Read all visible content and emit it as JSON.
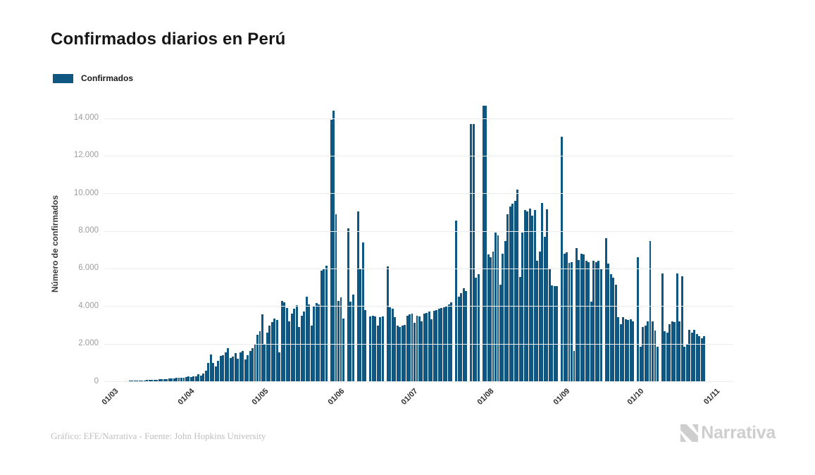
{
  "title": "Confirmados diarios en Perú",
  "legend": {
    "label": "Confirmados",
    "color": "#0f5680"
  },
  "footer": "Gráfico: EFE/Narrativa - Fuente: John Hopkins University",
  "logo": {
    "text": "Narrativa",
    "color": "#cecece"
  },
  "chart_data": {
    "type": "bar",
    "title": "Confirmados diarios en Perú",
    "series_name": "Confirmados",
    "bar_color": "#0f5680",
    "ylabel": "Número de confirmados",
    "ylim": [
      0,
      14650
    ],
    "grid": "horizontal",
    "legend_position": "top-left",
    "y_tick_labels": [
      "0",
      "2.000",
      "4.000",
      "6.000",
      "8.000",
      "10.000",
      "12.000",
      "14.000"
    ],
    "y_tick_values": [
      0,
      2000,
      4000,
      6000,
      8000,
      10000,
      12000,
      14000
    ],
    "x_tick_labels": [
      "01/03",
      "01/04",
      "01/05",
      "01/06",
      "01/07",
      "01/08",
      "01/09",
      "01/10",
      "01/11"
    ],
    "x_tick_day_index": [
      0,
      31,
      61,
      92,
      122,
      153,
      184,
      214,
      245
    ],
    "x_range_note": "daily bars from 01/03 to 01/11",
    "values": [
      2,
      1,
      3,
      4,
      6,
      5,
      9,
      11,
      15,
      17,
      20,
      25,
      28,
      30,
      38,
      43,
      50,
      58,
      65,
      73,
      80,
      88,
      95,
      105,
      115,
      128,
      140,
      148,
      160,
      170,
      180,
      200,
      190,
      210,
      260,
      230,
      250,
      280,
      360,
      310,
      420,
      575,
      960,
      1420,
      980,
      780,
      1100,
      1360,
      1400,
      1550,
      1750,
      1250,
      1300,
      1500,
      1200,
      1550,
      1600,
      1150,
      1400,
      1600,
      1750,
      2000,
      2460,
      2650,
      3550,
      2000,
      2600,
      2960,
      3150,
      3350,
      3250,
      1520,
      4270,
      4200,
      3900,
      3200,
      3600,
      3850,
      4050,
      2900,
      3500,
      3700,
      4500,
      4100,
      2950,
      3980,
      4150,
      4100,
      5900,
      6000,
      6150,
      0,
      13900,
      14400,
      8900,
      4260,
      4450,
      3350,
      0,
      8150,
      4250,
      4600,
      0,
      9050,
      5950,
      7400,
      3800,
      0,
      3450,
      3500,
      3450,
      2950,
      3400,
      3450,
      0,
      6100,
      3920,
      3850,
      3420,
      2960,
      2900,
      2950,
      3000,
      3500,
      3550,
      3600,
      3100,
      3500,
      3450,
      3200,
      3600,
      3650,
      3700,
      3300,
      3750,
      3800,
      3850,
      3900,
      3950,
      4000,
      4100,
      4200,
      0,
      8540,
      4500,
      4700,
      4950,
      4800,
      0,
      13700,
      13700,
      5500,
      5700,
      0,
      14650,
      14650,
      6740,
      6600,
      6900,
      7900,
      7750,
      5150,
      6800,
      7450,
      8900,
      9300,
      9450,
      9600,
      10200,
      5550,
      7900,
      9100,
      9050,
      9200,
      8800,
      9100,
      6400,
      6900,
      9500,
      7700,
      9150,
      6000,
      5100,
      5050,
      5080,
      0,
      13000,
      6800,
      6850,
      6300,
      6350,
      1630,
      7100,
      6450,
      6800,
      6750,
      6400,
      6350,
      4240,
      6400,
      6350,
      6400,
      6000,
      0,
      7600,
      6250,
      5700,
      5500,
      5150,
      3420,
      3030,
      3400,
      3300,
      3270,
      3300,
      3200,
      0,
      6600,
      1850,
      2900,
      2950,
      3200,
      7470,
      3200,
      2700,
      1850,
      0,
      5730,
      2650,
      2600,
      3050,
      3200,
      3150,
      5750,
      3200,
      5600,
      1850,
      1950,
      2750,
      2600,
      2720,
      2500,
      2400,
      2300,
      2400
    ]
  }
}
